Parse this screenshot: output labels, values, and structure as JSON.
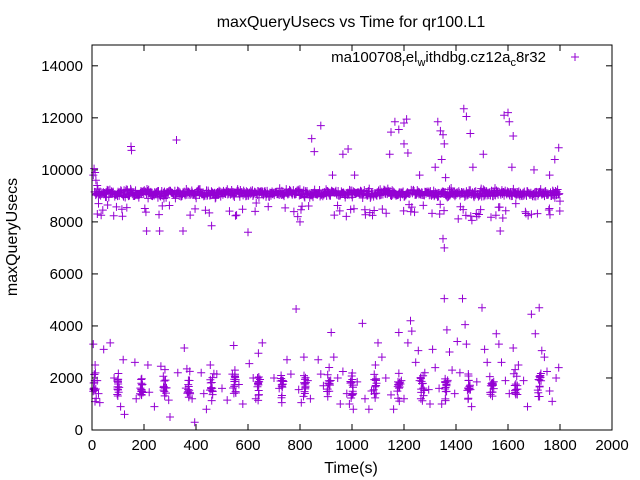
{
  "chart_data": {
    "type": "scatter",
    "title": "maxQueryUsecs vs Time for qr100.L1",
    "xlabel": "Time(s)",
    "ylabel": "maxQueryUsecs",
    "xlim": [
      0,
      2000
    ],
    "ylim": [
      0,
      14800
    ],
    "xticks": [
      "0",
      "200",
      "400",
      "600",
      "800",
      "1000",
      "1200",
      "1400",
      "1600",
      "1800",
      "2000"
    ],
    "yticks": [
      "0",
      "2000",
      "4000",
      "6000",
      "8000",
      "10000",
      "12000",
      "14000"
    ],
    "grid": false,
    "legend_position": "top-right",
    "marker": "plus",
    "color": "#9400d3",
    "series": [
      {
        "legend": {
          "base": "ma100708",
          "parts": [
            [
              "r",
              "sub"
            ],
            [
              "el",
              "base"
            ],
            [
              "w",
              "sub"
            ],
            [
              "ithdbg.cz12a",
              "base"
            ],
            [
              "c",
              "sub"
            ],
            [
              "8r32",
              "base"
            ]
          ]
        },
        "time_range": [
          0,
          1800
        ],
        "band_level": 9100,
        "points": [
          [
            5,
            9800
          ],
          [
            8,
            10050
          ],
          [
            12,
            9900
          ],
          [
            15,
            9600
          ],
          [
            20,
            9400
          ],
          [
            25,
            8700
          ],
          [
            150,
            10900
          ],
          [
            152,
            10750
          ],
          [
            325,
            11150
          ],
          [
            55,
            8950
          ],
          [
            60,
            8650
          ],
          [
            210,
            7650
          ],
          [
            260,
            7650
          ],
          [
            350,
            7650
          ],
          [
            460,
            7850
          ],
          [
            600,
            7600
          ],
          [
            800,
            8000
          ],
          [
            845,
            11200
          ],
          [
            855,
            10700
          ],
          [
            880,
            11700
          ],
          [
            925,
            9800
          ],
          [
            965,
            10600
          ],
          [
            985,
            10800
          ],
          [
            1010,
            9800
          ],
          [
            1130,
            9200
          ],
          [
            1145,
            10600
          ],
          [
            1150,
            11450
          ],
          [
            1165,
            11850
          ],
          [
            1180,
            11550
          ],
          [
            1200,
            11800
          ],
          [
            1210,
            11950
          ],
          [
            1200,
            11000
          ],
          [
            1215,
            10650
          ],
          [
            1260,
            9800
          ],
          [
            1320,
            10100
          ],
          [
            1330,
            11850
          ],
          [
            1340,
            11500
          ],
          [
            1350,
            11350
          ],
          [
            1355,
            11000
          ],
          [
            1345,
            10400
          ],
          [
            1360,
            9700
          ],
          [
            1350,
            7350
          ],
          [
            1355,
            7000
          ],
          [
            1430,
            12350
          ],
          [
            1440,
            12050
          ],
          [
            1455,
            11400
          ],
          [
            1465,
            10100
          ],
          [
            1495,
            9200
          ],
          [
            1505,
            10600
          ],
          [
            1550,
            9300
          ],
          [
            1570,
            7650
          ],
          [
            1585,
            12100
          ],
          [
            1600,
            12200
          ],
          [
            1605,
            11850
          ],
          [
            1620,
            11300
          ],
          [
            1615,
            10100
          ],
          [
            1630,
            8700
          ],
          [
            1580,
            8150
          ],
          [
            1700,
            10000
          ],
          [
            1760,
            9800
          ],
          [
            1780,
            10400
          ],
          [
            1795,
            10850
          ],
          [
            1800,
            8800
          ],
          [
            5,
            3300
          ],
          [
            12,
            2500
          ],
          [
            20,
            1900
          ],
          [
            25,
            1400
          ],
          [
            30,
            1050
          ],
          [
            45,
            3100
          ],
          [
            70,
            3350
          ],
          [
            85,
            2000
          ],
          [
            100,
            1550
          ],
          [
            110,
            900
          ],
          [
            120,
            2700
          ],
          [
            125,
            600
          ],
          [
            165,
            2600
          ],
          [
            170,
            1200
          ],
          [
            215,
            2500
          ],
          [
            220,
            1450
          ],
          [
            240,
            900
          ],
          [
            265,
            2450
          ],
          [
            295,
            1150
          ],
          [
            300,
            500
          ],
          [
            330,
            2200
          ],
          [
            355,
            3150
          ],
          [
            365,
            2350
          ],
          [
            385,
            1200
          ],
          [
            395,
            300
          ],
          [
            420,
            2200
          ],
          [
            430,
            1400
          ],
          [
            440,
            800
          ],
          [
            455,
            2500
          ],
          [
            480,
            2150
          ],
          [
            500,
            1600
          ],
          [
            520,
            1150
          ],
          [
            540,
            2150
          ],
          [
            545,
            3250
          ],
          [
            565,
            1750
          ],
          [
            580,
            1000
          ],
          [
            605,
            2550
          ],
          [
            620,
            2000
          ],
          [
            630,
            1200
          ],
          [
            640,
            2950
          ],
          [
            655,
            3350
          ],
          [
            700,
            2000
          ],
          [
            720,
            1600
          ],
          [
            730,
            1050
          ],
          [
            750,
            2700
          ],
          [
            765,
            2150
          ],
          [
            785,
            4650
          ],
          [
            795,
            1550
          ],
          [
            805,
            1050
          ],
          [
            815,
            2800
          ],
          [
            830,
            1900
          ],
          [
            840,
            1200
          ],
          [
            870,
            2700
          ],
          [
            880,
            2150
          ],
          [
            890,
            1700
          ],
          [
            920,
            3750
          ],
          [
            930,
            2800
          ],
          [
            945,
            2000
          ],
          [
            955,
            1000
          ],
          [
            965,
            2250
          ],
          [
            980,
            1400
          ],
          [
            990,
            1000
          ],
          [
            1005,
            800
          ],
          [
            1020,
            1850
          ],
          [
            1040,
            4100
          ],
          [
            1050,
            1200
          ],
          [
            1065,
            800
          ],
          [
            1075,
            1500
          ],
          [
            1090,
            2500
          ],
          [
            1100,
            3350
          ],
          [
            1115,
            2800
          ],
          [
            1130,
            2000
          ],
          [
            1150,
            1350
          ],
          [
            1160,
            800
          ],
          [
            1180,
            3750
          ],
          [
            1190,
            1900
          ],
          [
            1200,
            1200
          ],
          [
            1215,
            3350
          ],
          [
            1225,
            4200
          ],
          [
            1230,
            3800
          ],
          [
            1245,
            2600
          ],
          [
            1255,
            3050
          ],
          [
            1260,
            1900
          ],
          [
            1265,
            1200
          ],
          [
            1280,
            2200
          ],
          [
            1295,
            1550
          ],
          [
            1300,
            1000
          ],
          [
            1310,
            3100
          ],
          [
            1320,
            2400
          ],
          [
            1335,
            1600
          ],
          [
            1345,
            1000
          ],
          [
            1355,
            5050
          ],
          [
            1365,
            3850
          ],
          [
            1375,
            3000
          ],
          [
            1385,
            2300
          ],
          [
            1395,
            1400
          ],
          [
            1405,
            3400
          ],
          [
            1415,
            2200
          ],
          [
            1425,
            5050
          ],
          [
            1435,
            4050
          ],
          [
            1440,
            3300
          ],
          [
            1450,
            1600
          ],
          [
            1460,
            900
          ],
          [
            1480,
            1850
          ],
          [
            1500,
            4700
          ],
          [
            1510,
            3100
          ],
          [
            1520,
            2600
          ],
          [
            1530,
            2050
          ],
          [
            1540,
            1300
          ],
          [
            1555,
            3700
          ],
          [
            1565,
            3300
          ],
          [
            1575,
            2600
          ],
          [
            1590,
            1900
          ],
          [
            1605,
            1400
          ],
          [
            1620,
            3150
          ],
          [
            1640,
            2500
          ],
          [
            1660,
            1900
          ],
          [
            1675,
            900
          ],
          [
            1690,
            4450
          ],
          [
            1705,
            3700
          ],
          [
            1720,
            4700
          ],
          [
            1730,
            3050
          ],
          [
            1740,
            2800
          ],
          [
            1750,
            2250
          ],
          [
            1760,
            1500
          ],
          [
            1770,
            1100
          ],
          [
            1785,
            2000
          ],
          [
            1795,
            2400
          ]
        ]
      }
    ]
  }
}
